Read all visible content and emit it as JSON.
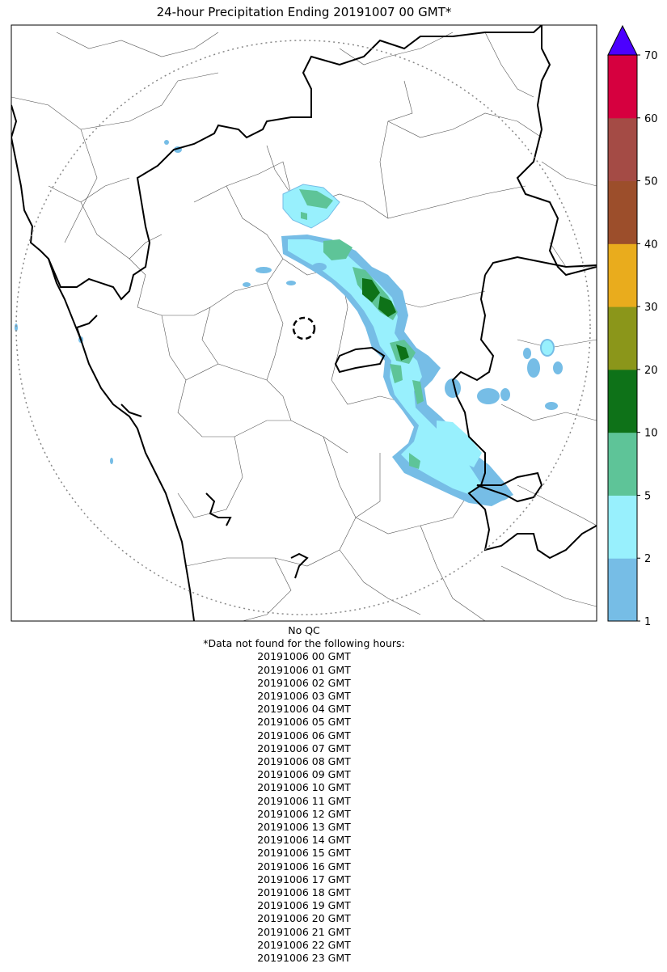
{
  "title": "24-hour Precipitation Ending 20191007 00 GMT*",
  "colorbar": {
    "ticks": [
      "1",
      "2",
      "5",
      "10",
      "20",
      "30",
      "40",
      "50",
      "60",
      "70"
    ],
    "colors": [
      "#76bde6",
      "#98f0fd",
      "#5ec498",
      "#0e7218",
      "#8b961a",
      "#e9ac1d",
      "#9c4e2b",
      "#a44b45",
      "#d6003f"
    ],
    "extend_color": "#4b00ff"
  },
  "notes": {
    "qc": "No QC",
    "header": "*Data not found for the following hours:",
    "missing_hours": [
      "20191006 00 GMT",
      "20191006 01 GMT",
      "20191006 02 GMT",
      "20191006 03 GMT",
      "20191006 04 GMT",
      "20191006 05 GMT",
      "20191006 06 GMT",
      "20191006 07 GMT",
      "20191006 08 GMT",
      "20191006 09 GMT",
      "20191006 10 GMT",
      "20191006 11 GMT",
      "20191006 12 GMT",
      "20191006 13 GMT",
      "20191006 14 GMT",
      "20191006 15 GMT",
      "20191006 16 GMT",
      "20191006 17 GMT",
      "20191006 18 GMT",
      "20191006 19 GMT",
      "20191006 20 GMT",
      "20191006 21 GMT",
      "20191006 22 GMT",
      "20191006 23 GMT"
    ]
  }
}
